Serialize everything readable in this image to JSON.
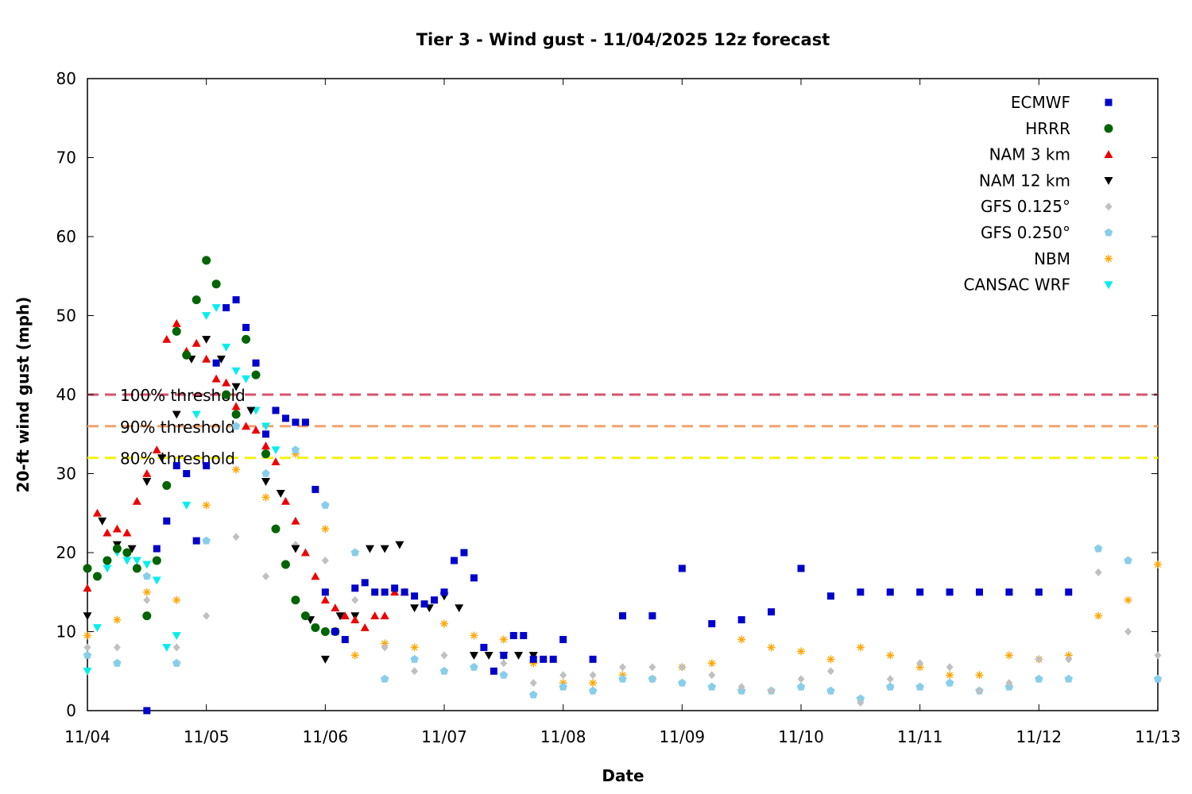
{
  "chart_data": {
    "type": "scatter",
    "title": "Tier 3 - Wind gust - 11/04/2025 12z forecast",
    "xlabel": "Date",
    "ylabel": "20-ft wind gust (mph)",
    "x_unit": "date (2025)",
    "xlim": [
      "11/04 00:00",
      "11/13 00:00"
    ],
    "ylim": [
      0,
      80
    ],
    "x_ticks": [
      "11/04",
      "11/05",
      "11/06",
      "11/07",
      "11/08",
      "11/09",
      "11/10",
      "11/11",
      "11/12",
      "11/13"
    ],
    "y_ticks": [
      0,
      10,
      20,
      30,
      40,
      50,
      60,
      70,
      80
    ],
    "grid": false,
    "legend_position": "top-right",
    "thresholds": [
      {
        "label": "100% threshold",
        "value": 40,
        "color": "#d6546e"
      },
      {
        "label": "90% threshold",
        "value": 36,
        "color": "#f2a36b"
      },
      {
        "label": "80% threshold",
        "value": 32,
        "color": "#f7f20d"
      }
    ],
    "series": [
      {
        "name": "ECMWF",
        "marker": "square",
        "color": "#0000cc",
        "x": [
          "11/04 12:00",
          "11/04 14:00",
          "11/04 16:00",
          "11/04 18:00",
          "11/04 20:00",
          "11/04 22:00",
          "11/05 00:00",
          "11/05 02:00",
          "11/05 04:00",
          "11/05 06:00",
          "11/05 08:00",
          "11/05 10:00",
          "11/05 12:00",
          "11/05 14:00",
          "11/05 16:00",
          "11/05 18:00",
          "11/05 20:00",
          "11/05 22:00",
          "11/06 00:00",
          "11/06 02:00",
          "11/06 04:00",
          "11/06 06:00",
          "11/06 08:00",
          "11/06 10:00",
          "11/06 12:00",
          "11/06 14:00",
          "11/06 16:00",
          "11/06 18:00",
          "11/06 20:00",
          "11/06 22:00",
          "11/07 00:00",
          "11/07 02:00",
          "11/07 04:00",
          "11/07 06:00",
          "11/07 08:00",
          "11/07 10:00",
          "11/07 12:00",
          "11/07 14:00",
          "11/07 16:00",
          "11/07 18:00",
          "11/07 20:00",
          "11/07 22:00",
          "11/08 00:00",
          "11/08 06:00",
          "11/08 12:00",
          "11/08 18:00",
          "11/09 00:00",
          "11/09 06:00",
          "11/09 12:00",
          "11/09 18:00",
          "11/10 00:00",
          "11/10 06:00",
          "11/10 12:00",
          "11/10 18:00",
          "11/11 00:00",
          "11/11 06:00",
          "11/11 12:00",
          "11/11 18:00",
          "11/12 00:00",
          "11/12 06:00"
        ],
        "y": [
          0,
          20.5,
          24,
          31,
          30,
          21.5,
          31,
          44,
          51,
          52,
          48.5,
          44,
          35,
          38,
          37,
          36.5,
          36.5,
          28,
          15,
          10,
          9,
          15.5,
          16.2,
          15,
          15,
          15.5,
          15,
          14.5,
          13.5,
          14,
          15,
          19,
          20,
          16.8,
          8,
          5,
          7,
          9.5,
          9.5,
          6.5,
          6.5,
          6.5,
          9,
          6.5,
          12,
          12,
          18,
          11,
          11.5,
          12.5,
          18,
          14.5,
          15,
          15,
          15,
          15,
          15,
          15,
          15,
          15
        ]
      },
      {
        "name": "HRRR",
        "marker": "circle",
        "color": "#006400",
        "x": [
          "11/04 00:00",
          "11/04 02:00",
          "11/04 04:00",
          "11/04 06:00",
          "11/04 08:00",
          "11/04 10:00",
          "11/04 12:00",
          "11/04 14:00",
          "11/04 16:00",
          "11/04 18:00",
          "11/04 20:00",
          "11/04 22:00",
          "11/05 00:00",
          "11/05 02:00",
          "11/05 04:00",
          "11/05 06:00",
          "11/05 08:00",
          "11/05 10:00",
          "11/05 12:00",
          "11/05 14:00",
          "11/05 16:00",
          "11/05 18:00",
          "11/05 20:00",
          "11/05 22:00",
          "11/06 00:00",
          "11/06 02:00"
        ],
        "y": [
          18,
          17,
          19,
          20.5,
          20,
          18,
          12,
          19,
          28.5,
          48,
          45,
          52,
          57,
          54,
          40,
          37.5,
          47,
          42.5,
          32.5,
          23,
          18.5,
          14,
          12,
          10.5,
          10,
          10
        ]
      },
      {
        "name": "NAM 3 km",
        "marker": "triangle-up",
        "color": "#ee0000",
        "x": [
          "11/04 00:00",
          "11/04 02:00",
          "11/04 04:00",
          "11/04 06:00",
          "11/04 08:00",
          "11/04 10:00",
          "11/04 12:00",
          "11/04 14:00",
          "11/04 16:00",
          "11/04 18:00",
          "11/04 20:00",
          "11/04 22:00",
          "11/05 00:00",
          "11/05 02:00",
          "11/05 04:00",
          "11/05 06:00",
          "11/05 08:00",
          "11/05 10:00",
          "11/05 12:00",
          "11/05 14:00",
          "11/05 16:00",
          "11/05 18:00",
          "11/05 20:00",
          "11/05 22:00",
          "11/06 00:00",
          "11/06 02:00",
          "11/06 04:00",
          "11/06 06:00",
          "11/06 08:00",
          "11/06 10:00",
          "11/06 12:00",
          "11/06 14:00",
          "11/06 16:00"
        ],
        "y": [
          15.5,
          25,
          22.5,
          23,
          22.5,
          26.5,
          30,
          33,
          47,
          49,
          45.5,
          46.5,
          44.5,
          42,
          41.5,
          38.5,
          36,
          35.5,
          33.5,
          31.5,
          26.5,
          24,
          20,
          17,
          14,
          13,
          12,
          11.5,
          10.5,
          12,
          12,
          15,
          15
        ]
      },
      {
        "name": "NAM 12 km",
        "marker": "triangle-down",
        "color": "#000000",
        "x": [
          "11/04 00:00",
          "11/04 03:00",
          "11/04 06:00",
          "11/04 09:00",
          "11/04 12:00",
          "11/04 15:00",
          "11/04 18:00",
          "11/04 21:00",
          "11/05 00:00",
          "11/05 03:00",
          "11/05 06:00",
          "11/05 09:00",
          "11/05 12:00",
          "11/05 15:00",
          "11/05 18:00",
          "11/05 21:00",
          "11/06 00:00",
          "11/06 03:00",
          "11/06 06:00",
          "11/06 09:00",
          "11/06 12:00",
          "11/06 15:00",
          "11/06 18:00",
          "11/06 21:00",
          "11/07 00:00",
          "11/07 03:00",
          "11/07 06:00",
          "11/07 09:00",
          "11/07 12:00",
          "11/07 15:00",
          "11/07 18:00"
        ],
        "y": [
          12,
          24,
          21,
          20.5,
          29,
          32,
          37.5,
          44.5,
          47,
          44.5,
          41,
          38,
          29,
          27.5,
          20.5,
          11.5,
          6.5,
          12,
          12,
          20.5,
          20.5,
          21,
          13,
          13,
          14.5,
          13,
          7,
          7,
          7,
          7,
          7
        ]
      },
      {
        "name": "GFS 0.125°",
        "marker": "diamond",
        "color": "#c0c0c0",
        "x": [
          "11/04 00:00",
          "11/04 06:00",
          "11/04 12:00",
          "11/04 18:00",
          "11/05 00:00",
          "11/05 06:00",
          "11/05 12:00",
          "11/05 18:00",
          "11/06 00:00",
          "11/06 06:00",
          "11/06 12:00",
          "11/06 18:00",
          "11/07 00:00",
          "11/07 06:00",
          "11/07 12:00",
          "11/07 18:00",
          "11/08 00:00",
          "11/08 06:00",
          "11/08 12:00",
          "11/08 18:00",
          "11/09 00:00",
          "11/09 06:00",
          "11/09 12:00",
          "11/09 18:00",
          "11/10 00:00",
          "11/10 06:00",
          "11/10 12:00",
          "11/10 18:00",
          "11/11 00:00",
          "11/11 06:00",
          "11/11 12:00",
          "11/11 18:00",
          "11/12 00:00",
          "11/12 06:00",
          "11/12 12:00",
          "11/12 18:00",
          "11/13 00:00"
        ],
        "y": [
          8,
          8,
          14,
          8,
          12,
          22,
          17,
          21,
          19,
          14,
          8,
          5,
          7,
          7,
          6,
          3.5,
          4.5,
          4.5,
          5.5,
          5.5,
          5.5,
          4.5,
          3,
          2.5,
          4,
          5,
          1,
          4,
          6,
          5.5,
          2.5,
          3.5,
          6.5,
          6.5,
          17.5,
          10,
          7
        ]
      },
      {
        "name": "GFS 0.250°",
        "marker": "pentagon",
        "color": "#87ceeb",
        "x": [
          "11/04 00:00",
          "11/04 06:00",
          "11/04 12:00",
          "11/04 18:00",
          "11/05 00:00",
          "11/05 06:00",
          "11/05 12:00",
          "11/05 18:00",
          "11/06 00:00",
          "11/06 06:00",
          "11/06 12:00",
          "11/06 18:00",
          "11/07 00:00",
          "11/07 06:00",
          "11/07 12:00",
          "11/07 18:00",
          "11/08 00:00",
          "11/08 06:00",
          "11/08 12:00",
          "11/08 18:00",
          "11/09 00:00",
          "11/09 06:00",
          "11/09 12:00",
          "11/09 18:00",
          "11/10 00:00",
          "11/10 06:00",
          "11/10 12:00",
          "11/10 18:00",
          "11/11 00:00",
          "11/11 06:00",
          "11/11 12:00",
          "11/11 18:00",
          "11/12 00:00",
          "11/12 06:00",
          "11/12 12:00",
          "11/12 18:00",
          "11/13 00:00"
        ],
        "y": [
          7,
          6,
          17,
          6,
          21.5,
          36,
          30,
          33,
          26,
          20,
          4,
          6.5,
          5,
          5.5,
          4.5,
          2,
          3,
          2.5,
          4,
          4,
          3.5,
          3,
          2.5,
          2.5,
          3,
          2.5,
          1.5,
          3,
          3,
          3.5,
          2.5,
          3,
          4,
          4,
          20.5,
          19,
          4
        ]
      },
      {
        "name": "NBM",
        "marker": "asterisk",
        "color": "#ffa500",
        "x": [
          "11/04 00:00",
          "11/04 06:00",
          "11/04 12:00",
          "11/04 18:00",
          "11/05 00:00",
          "11/05 06:00",
          "11/05 12:00",
          "11/05 18:00",
          "11/06 00:00",
          "11/06 06:00",
          "11/06 12:00",
          "11/06 18:00",
          "11/07 00:00",
          "11/07 06:00",
          "11/07 12:00",
          "11/07 18:00",
          "11/08 00:00",
          "11/08 06:00",
          "11/08 12:00",
          "11/08 18:00",
          "11/09 00:00",
          "11/09 06:00",
          "11/09 12:00",
          "11/09 18:00",
          "11/10 00:00",
          "11/10 06:00",
          "11/10 12:00",
          "11/10 18:00",
          "11/11 00:00",
          "11/11 06:00",
          "11/11 12:00",
          "11/11 18:00",
          "11/12 00:00",
          "11/12 06:00",
          "11/12 12:00",
          "11/12 18:00",
          "11/13 00:00"
        ],
        "y": [
          9.5,
          11.5,
          15,
          14,
          26,
          30.5,
          27,
          32.5,
          23,
          7,
          8.5,
          8,
          11,
          9.5,
          9,
          6,
          3.5,
          3.5,
          4.5,
          4,
          5.5,
          6,
          9,
          8,
          7.5,
          6.5,
          8,
          7,
          5.5,
          4.5,
          4.5,
          7,
          6.5,
          7,
          12,
          14,
          18.5
        ]
      },
      {
        "name": "CANSAC WRF",
        "marker": "triangle-down",
        "color": "#00eeee",
        "x": [
          "11/04 00:00",
          "11/04 02:00",
          "11/04 04:00",
          "11/04 06:00",
          "11/04 08:00",
          "11/04 10:00",
          "11/04 12:00",
          "11/04 14:00",
          "11/04 16:00",
          "11/04 18:00",
          "11/04 20:00",
          "11/04 22:00",
          "11/05 00:00",
          "11/05 02:00",
          "11/05 04:00",
          "11/05 06:00",
          "11/05 08:00",
          "11/05 10:00",
          "11/05 12:00",
          "11/05 14:00"
        ],
        "y": [
          5,
          10.5,
          18,
          20,
          19,
          19,
          18.5,
          16.5,
          8,
          9.5,
          26,
          37.5,
          50,
          51,
          46,
          43,
          42,
          38,
          36,
          33
        ]
      }
    ]
  }
}
